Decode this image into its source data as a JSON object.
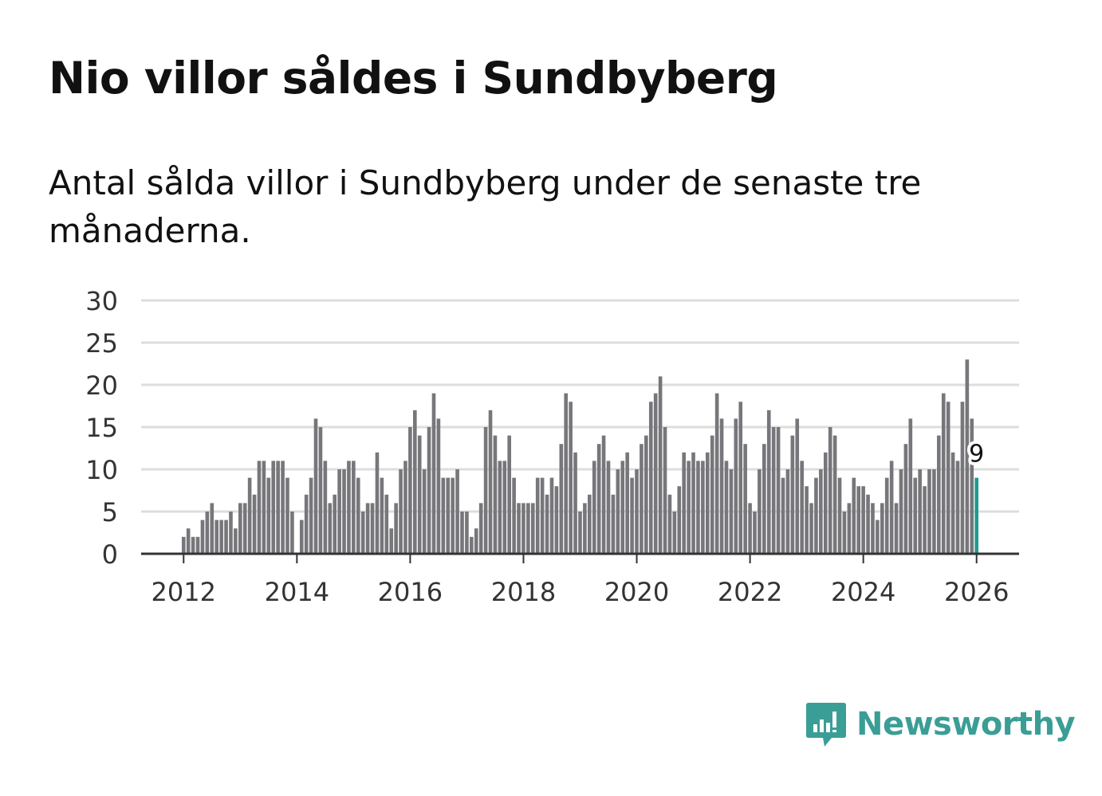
{
  "title": "Nio villor såldes i Sundbyberg",
  "subtitle": "Antal sålda villor i Sundbyberg under de senaste tre månaderna.",
  "logo_text": "Newsworthy",
  "colors": {
    "bar": "#77767b",
    "highlight": "#1f9a94",
    "grid": "#dddddd",
    "axis": "#333333",
    "brand": "#3a9e96"
  },
  "chart_data": {
    "type": "bar",
    "title": "Nio villor såldes i Sundbyberg",
    "xlabel": "",
    "ylabel": "",
    "ylim": [
      0,
      30
    ],
    "y_ticks": [
      0,
      5,
      10,
      15,
      20,
      25,
      30
    ],
    "x_ticks": [
      2012,
      2014,
      2016,
      2018,
      2020,
      2022,
      2024,
      2026
    ],
    "x_start": 2011.25,
    "x_end": 2026.75,
    "bar_step_years": 0.08333,
    "first_bar_x": 2012.0,
    "highlight_label": "9",
    "values": [
      2,
      3,
      2,
      2,
      4,
      5,
      6,
      4,
      4,
      4,
      5,
      3,
      6,
      6,
      9,
      7,
      11,
      11,
      9,
      11,
      11,
      11,
      9,
      5,
      0,
      4,
      7,
      9,
      16,
      15,
      11,
      6,
      7,
      10,
      10,
      11,
      11,
      9,
      5,
      6,
      6,
      12,
      9,
      7,
      3,
      6,
      10,
      11,
      15,
      17,
      14,
      10,
      15,
      19,
      16,
      9,
      9,
      9,
      10,
      5,
      5,
      2,
      3,
      6,
      15,
      17,
      14,
      11,
      11,
      14,
      9,
      6,
      6,
      6,
      6,
      9,
      9,
      7,
      9,
      8,
      13,
      19,
      18,
      12,
      5,
      6,
      7,
      11,
      13,
      14,
      11,
      7,
      10,
      11,
      12,
      9,
      10,
      13,
      14,
      18,
      19,
      21,
      15,
      7,
      5,
      8,
      12,
      11,
      12,
      11,
      11,
      12,
      14,
      19,
      16,
      11,
      10,
      16,
      18,
      13,
      6,
      5,
      10,
      13,
      17,
      15,
      15,
      9,
      10,
      14,
      16,
      11,
      8,
      6,
      9,
      10,
      12,
      15,
      14,
      9,
      5,
      6,
      9,
      8,
      8,
      7,
      6,
      4,
      6,
      9,
      11,
      6,
      10,
      13,
      16,
      9,
      10,
      8,
      10,
      10,
      14,
      19,
      18,
      12,
      11,
      18,
      23,
      16,
      9
    ]
  }
}
